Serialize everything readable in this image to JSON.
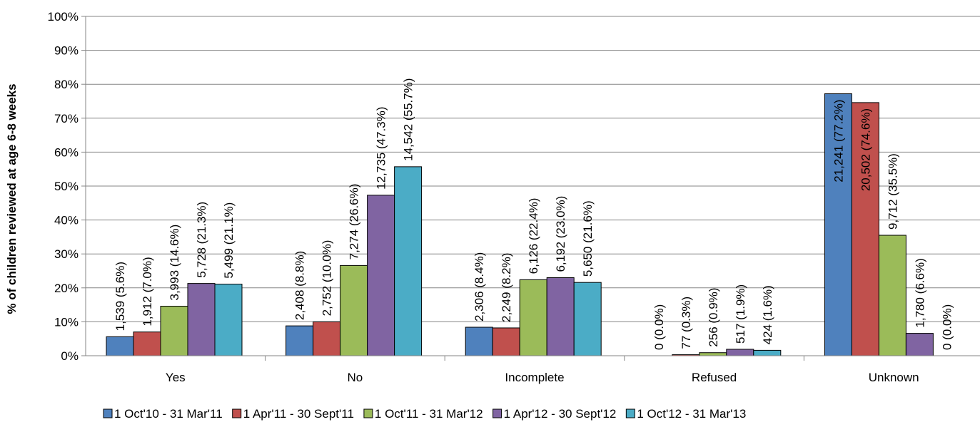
{
  "chart_data": {
    "type": "bar",
    "title": "",
    "xlabel": "",
    "ylabel": "% of children reviewed at age 6-8 weeks",
    "ylim": [
      0,
      100
    ],
    "y_ticks": [
      "0%",
      "10%",
      "20%",
      "30%",
      "40%",
      "50%",
      "60%",
      "70%",
      "80%",
      "90%",
      "100%"
    ],
    "grid": true,
    "legend_position": "bottom",
    "categories": [
      "Yes",
      "No",
      "Incomplete",
      "Refused",
      "Unknown"
    ],
    "series": [
      {
        "name": "1 Oct'10 - 31 Mar'11",
        "color": "#4F81BD",
        "values": [
          5.6,
          8.8,
          8.4,
          0.0,
          77.2
        ],
        "labels": [
          "1,539 (5.6%)",
          "2,408 (8.8%)",
          "2,306 (8.4%)",
          "0 (0.0%)",
          "21,241 (77.2%)"
        ]
      },
      {
        "name": "1 Apr'11 - 30 Sept'11",
        "color": "#C0504D",
        "values": [
          7.0,
          10.0,
          8.2,
          0.3,
          74.6
        ],
        "labels": [
          "1,912 (7.0%)",
          "2,752 (10.0%)",
          "2,249 (8.2%)",
          "77 (0.3%)",
          "20,502 (74.6%)"
        ]
      },
      {
        "name": "1 Oct'11 - 31 Mar'12",
        "color": "#9BBB59",
        "values": [
          14.6,
          26.6,
          22.4,
          0.9,
          35.5
        ],
        "labels": [
          "3,993 (14.6%)",
          "7,274 (26.6%)",
          "6,126 (22.4%)",
          "256 (0.9%)",
          "9,712 (35.5%)"
        ]
      },
      {
        "name": "1 Apr'12 - 30 Sept'12",
        "color": "#8064A2",
        "values": [
          21.3,
          47.3,
          23.0,
          1.9,
          6.6
        ],
        "labels": [
          "5,728 (21.3%)",
          "12,735 (47.3%)",
          "6,192 (23.0%)",
          "517 (1.9%)",
          "1,780 (6.6%)"
        ]
      },
      {
        "name": "1 Oct'12 - 31 Mar'13",
        "color": "#4BACC6",
        "values": [
          21.1,
          55.7,
          21.6,
          1.6,
          0.0
        ],
        "labels": [
          "5,499 (21.1%)",
          "14,542 (55.7%)",
          "5,650 (21.6%)",
          "424 (1.6%)",
          "0 (0.0%)"
        ]
      }
    ]
  }
}
